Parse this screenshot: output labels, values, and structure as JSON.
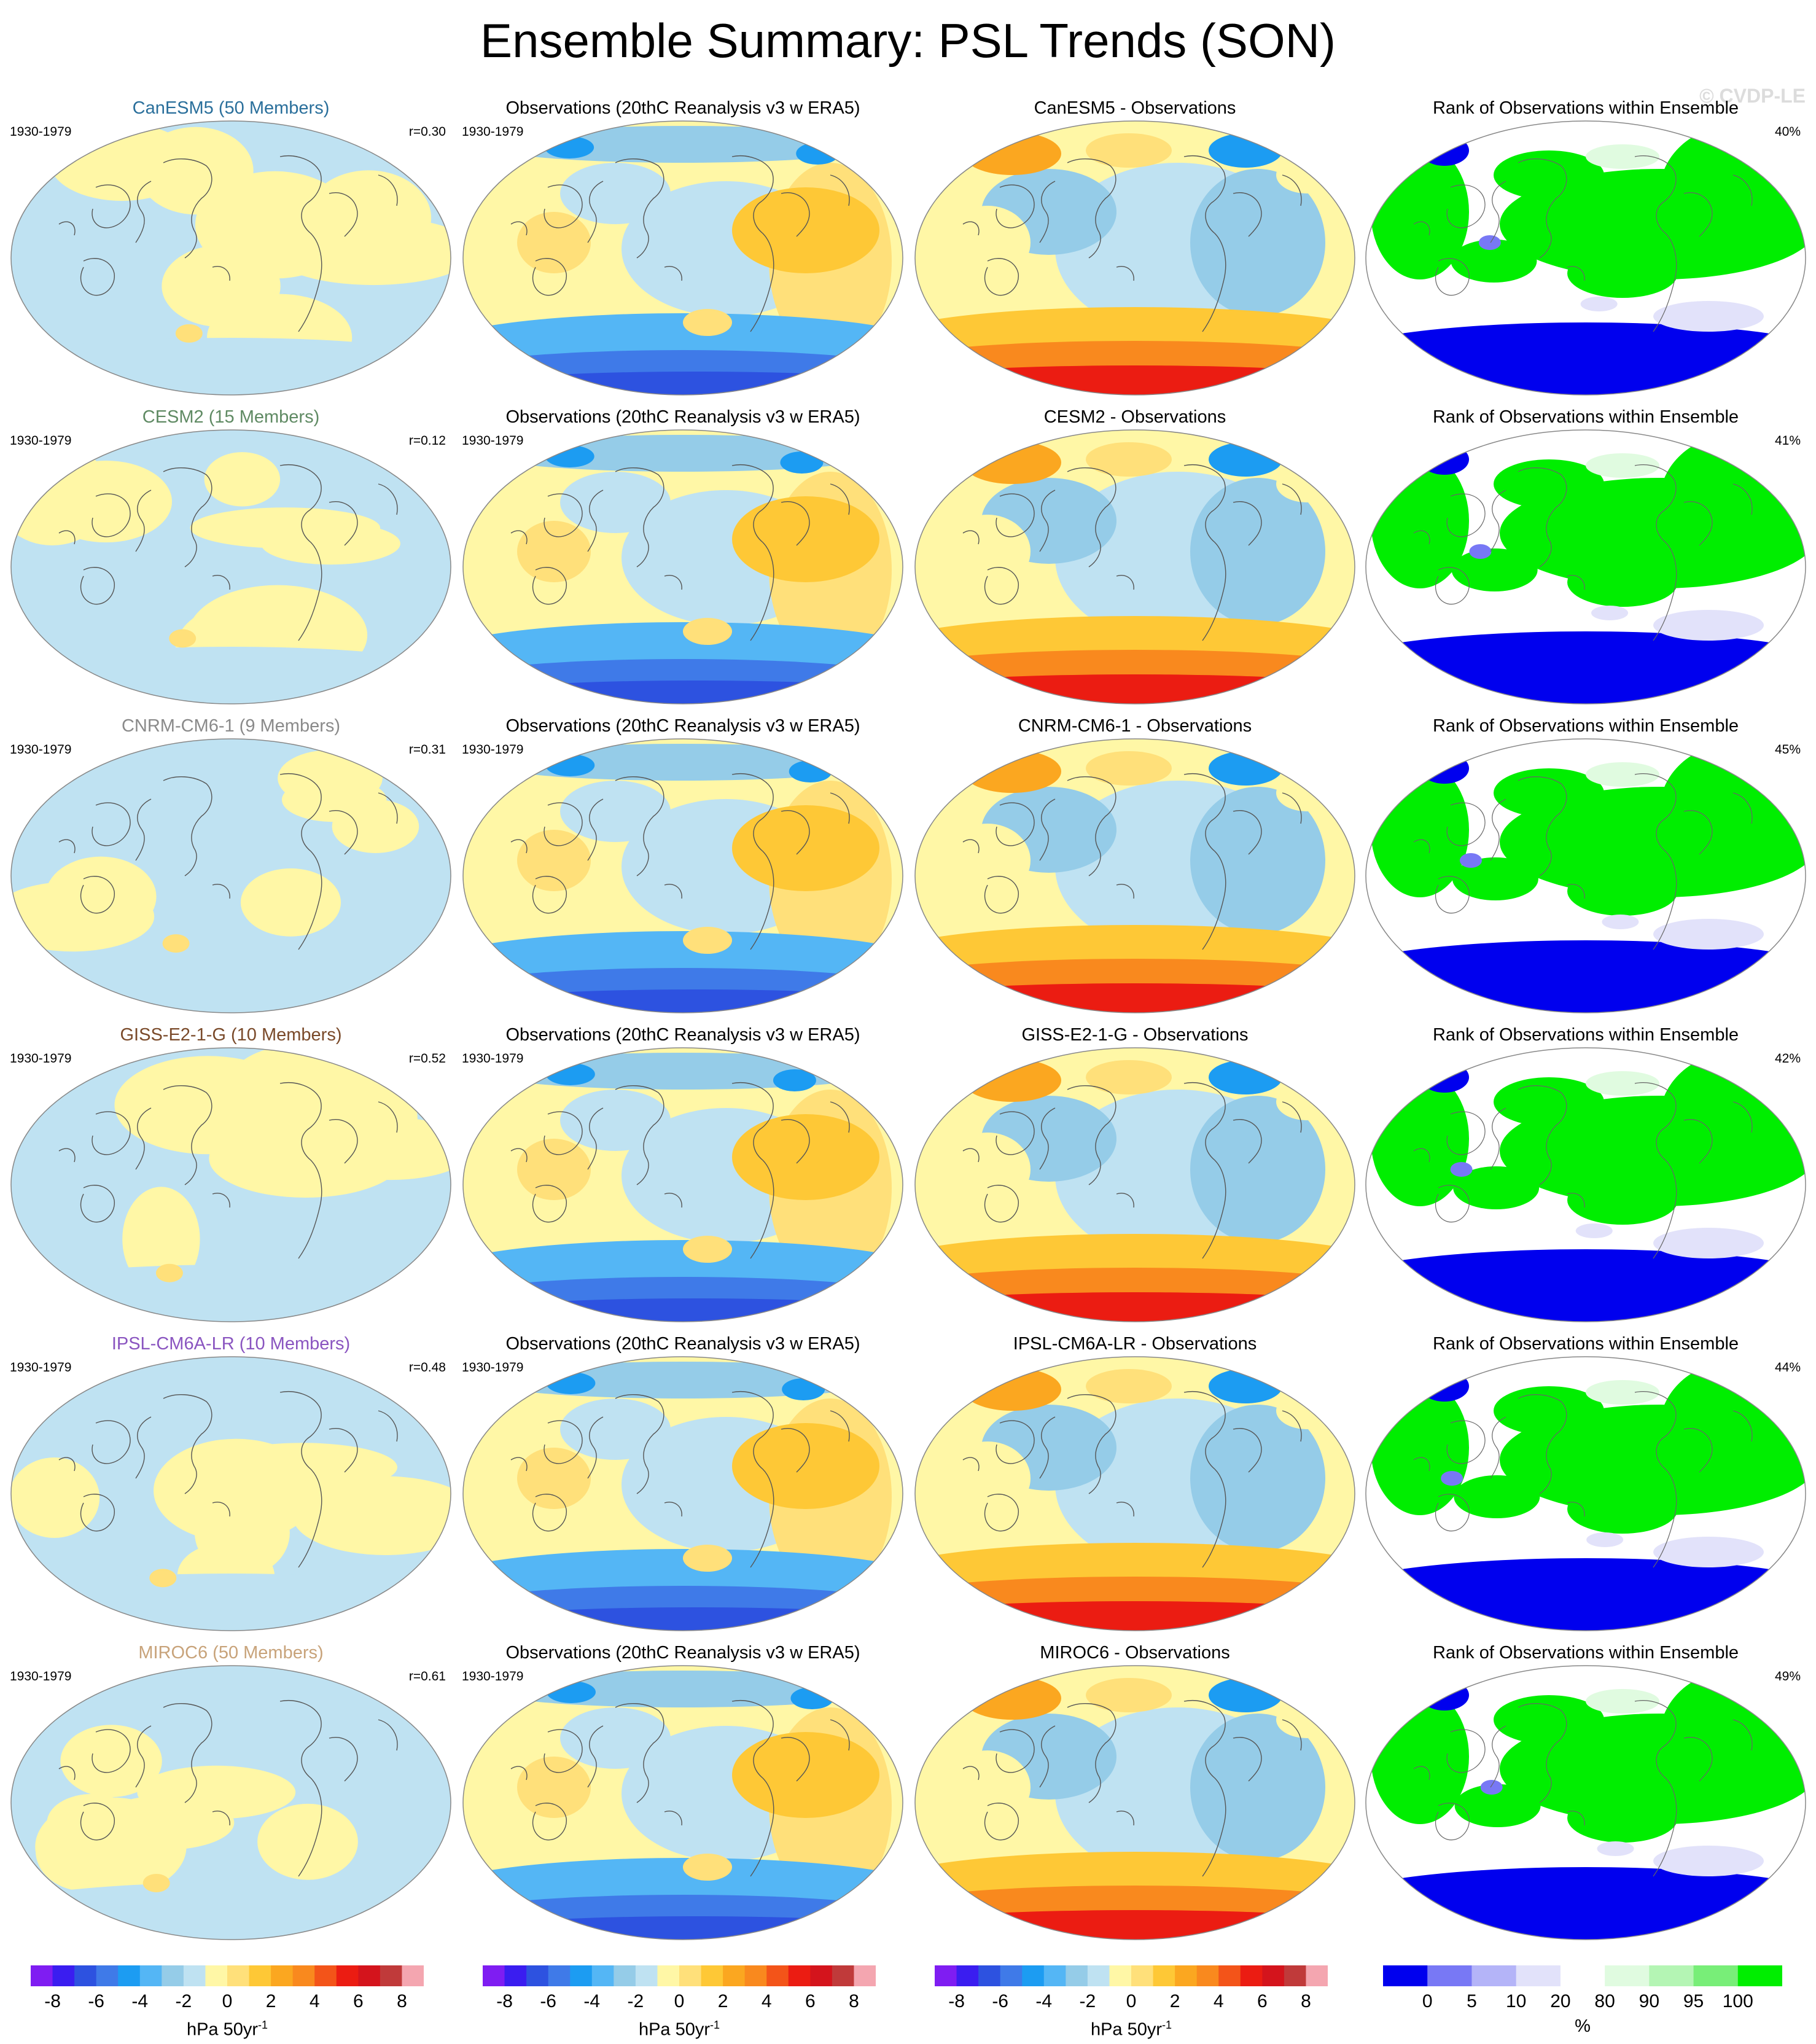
{
  "header": {
    "title": "Ensemble Summary: PSL Trends (SON)",
    "watermark": "© CVDP-LE"
  },
  "columns": [
    {
      "key": "model"
    },
    {
      "key": "obs"
    },
    {
      "key": "diff"
    },
    {
      "key": "rank"
    }
  ],
  "rows": [
    {
      "model": "CanESM5 (50 Members)",
      "model_color": "#2a6f9b",
      "r": "r=0.30",
      "period": "1930-1979",
      "obs_title": "Observations (20thC Reanalysis v3 w ERA5)",
      "diff_title": "CanESM5 - Observations",
      "rank_title": "Rank of Observations within Ensemble",
      "rank_pct": "40%"
    },
    {
      "model": "CESM2 (15 Members)",
      "model_color": "#5f8a63",
      "r": "r=0.12",
      "period": "1930-1979",
      "obs_title": "Observations (20thC Reanalysis v3 w ERA5)",
      "diff_title": "CESM2 - Observations",
      "rank_title": "Rank of Observations within Ensemble",
      "rank_pct": "41%"
    },
    {
      "model": "CNRM-CM6-1 (9 Members)",
      "model_color": "#8a8a8a",
      "r": "r=0.31",
      "period": "1930-1979",
      "obs_title": "Observations (20thC Reanalysis v3 w ERA5)",
      "diff_title": "CNRM-CM6-1 - Observations",
      "rank_title": "Rank of Observations within Ensemble",
      "rank_pct": "45%"
    },
    {
      "model": "GISS-E2-1-G (10 Members)",
      "model_color": "#7a4a2a",
      "r": "r=0.52",
      "period": "1930-1979",
      "obs_title": "Observations (20thC Reanalysis v3 w ERA5)",
      "diff_title": "GISS-E2-1-G - Observations",
      "rank_title": "Rank of Observations within Ensemble",
      "rank_pct": "42%"
    },
    {
      "model": "IPSL-CM6A-LR (10 Members)",
      "model_color": "#8a55c0",
      "r": "r=0.48",
      "period": "1930-1979",
      "obs_title": "Observations (20thC Reanalysis v3 w ERA5)",
      "diff_title": "IPSL-CM6A-LR - Observations",
      "rank_title": "Rank of Observations within Ensemble",
      "rank_pct": "44%"
    },
    {
      "model": "MIROC6 (50 Members)",
      "model_color": "#c8a37a",
      "r": "r=0.61",
      "period": "1930-1979",
      "obs_title": "Observations (20thC Reanalysis v3 w ERA5)",
      "diff_title": "MIROC6 - Observations",
      "rank_title": "Rank of Observations within Ensemble",
      "rank_pct": "49%"
    }
  ],
  "colorbars": {
    "trend": {
      "colors": [
        "#7f1df2",
        "#3a1df0",
        "#2d52e0",
        "#3f7ae8",
        "#1c9cf2",
        "#54b6f5",
        "#95cce8",
        "#bfe2f2",
        "#fff7a6",
        "#ffe07a",
        "#fec836",
        "#fba720",
        "#f9891e",
        "#f35419",
        "#eb1c12",
        "#d4141c",
        "#c03a3a",
        "#f4a6b0"
      ],
      "ticks": [
        "-8",
        "-6",
        "-4",
        "-2",
        "0",
        "2",
        "4",
        "6",
        "8"
      ],
      "unit": "hPa 50yr",
      "unit_sup": "-1"
    },
    "rank": {
      "colors": [
        "#0000ee",
        "#7878f5",
        "#b4b4f8",
        "#e2e2fa",
        "#ffffff",
        "#e0fbe0",
        "#b4f5b4",
        "#78ee78",
        "#00ee00"
      ],
      "ticks": [
        "0",
        "5",
        "10",
        "20",
        "80",
        "90",
        "95",
        "100"
      ],
      "unit": "%"
    }
  },
  "chart_data": {
    "type": "heatmap",
    "title": "Ensemble Summary: PSL Trends (SON)",
    "period": "1930-1979",
    "panels_per_row": [
      "model ensemble-mean trend",
      "observed trend",
      "model minus observations",
      "rank of observations within ensemble"
    ],
    "models": [
      {
        "name": "CanESM5",
        "members": 50,
        "pattern_correlation": 0.3,
        "rank_percent": 40
      },
      {
        "name": "CESM2",
        "members": 15,
        "pattern_correlation": 0.12,
        "rank_percent": 41
      },
      {
        "name": "CNRM-CM6-1",
        "members": 9,
        "pattern_correlation": 0.31,
        "rank_percent": 45
      },
      {
        "name": "GISS-E2-1-G",
        "members": 10,
        "pattern_correlation": 0.52,
        "rank_percent": 42
      },
      {
        "name": "IPSL-CM6A-LR",
        "members": 10,
        "pattern_correlation": 0.48,
        "rank_percent": 44
      },
      {
        "name": "MIROC6",
        "members": 50,
        "pattern_correlation": 0.61,
        "rank_percent": 49
      }
    ],
    "trend_scale": {
      "levels": [
        -8,
        -7,
        -6,
        -5,
        -4,
        -3,
        -2,
        -1,
        0,
        1,
        2,
        3,
        4,
        5,
        6,
        7,
        8
      ],
      "units": "hPa 50yr-1"
    },
    "rank_scale": {
      "levels": [
        0,
        5,
        10,
        20,
        80,
        90,
        95,
        100
      ],
      "units": "%"
    }
  }
}
